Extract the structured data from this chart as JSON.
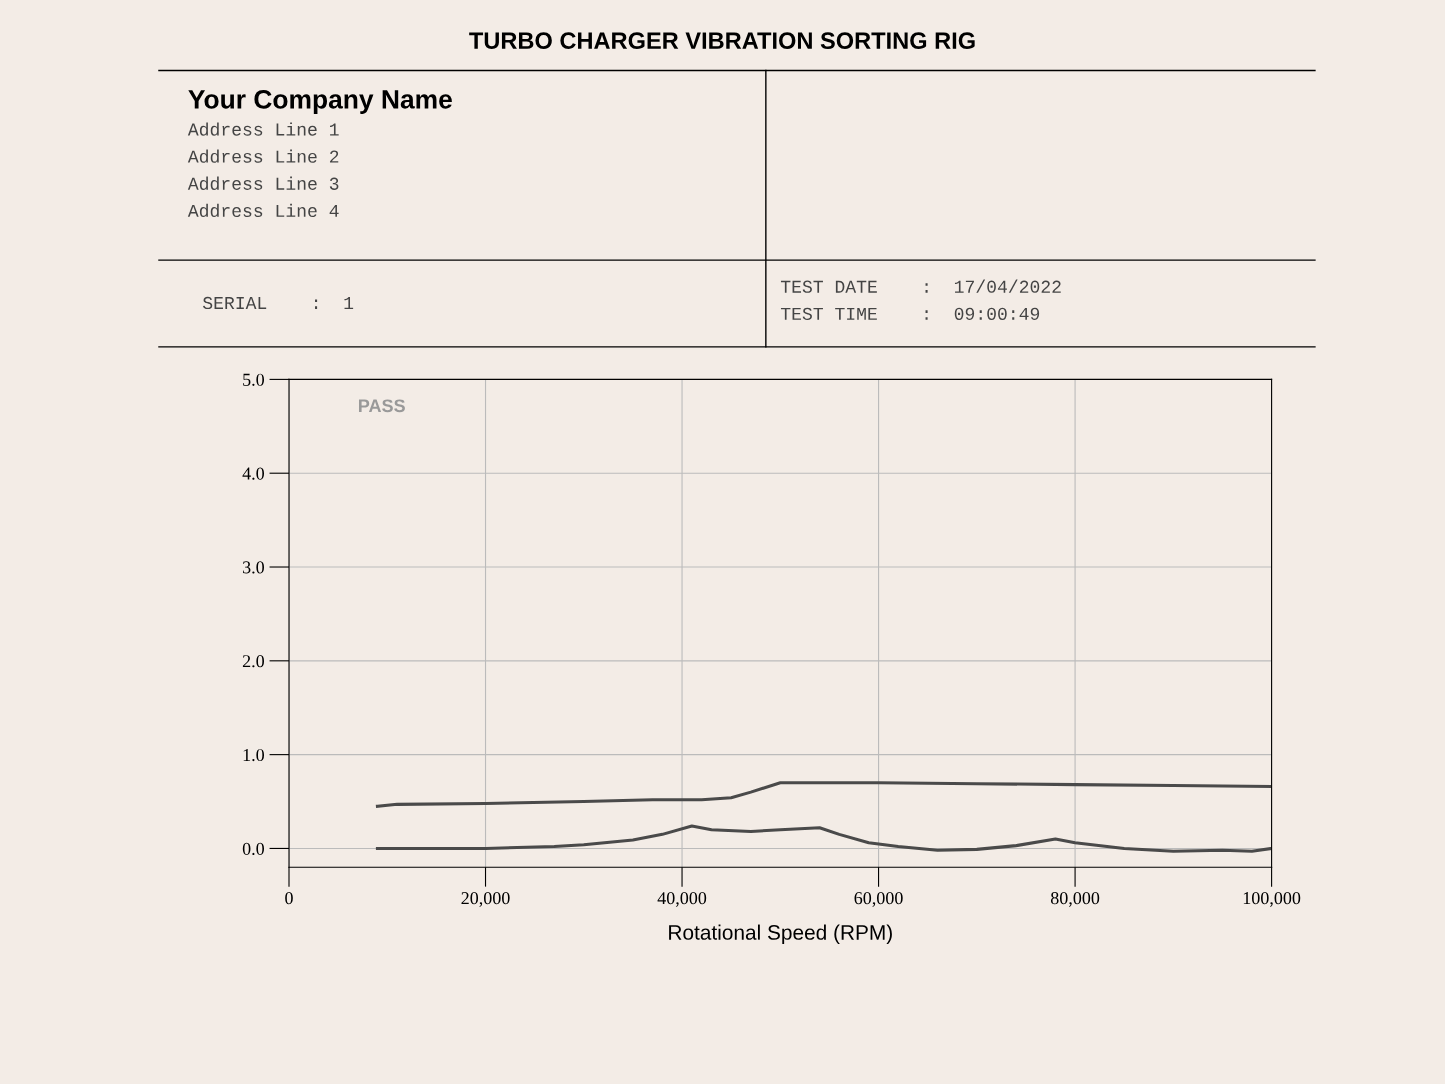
{
  "chart_data": {
    "type": "line",
    "title": "TURBO CHARGER VIBRATION SORTING RIG",
    "xlabel": "Rotational Speed (RPM)",
    "annotations": [
      "Your Company Name",
      "Address Line 1",
      "Address Line 2",
      "Address Line 3",
      "Address Line 4",
      "SERIAL    :  1",
      "TEST DATE    :  17/04/2022",
      "TEST TIME    :  09:00:49",
      "PASS"
    ],
    "series": [
      {
        "color": "#4a4a4a",
        "x": [
          9000,
          11000,
          20000,
          30000,
          37000,
          42000,
          45000,
          47000,
          50000,
          60000,
          70000,
          80000,
          90000,
          100000
        ],
        "values": [
          0.45,
          0.47,
          0.48,
          0.5,
          0.52,
          0.52,
          0.54,
          0.6,
          0.7,
          0.7,
          0.69,
          0.68,
          0.67,
          0.66
        ]
      },
      {
        "color": "#4a4a4a",
        "x": [
          9000,
          20000,
          27000,
          30000,
          35000,
          38000,
          41000,
          43000,
          47000,
          50000,
          54000,
          56000,
          59000,
          62000,
          66000,
          70000,
          74000,
          78000,
          80000,
          85000,
          90000,
          95000,
          98000,
          100000
        ],
        "values": [
          0.0,
          0.0,
          0.02,
          0.04,
          0.09,
          0.15,
          0.24,
          0.2,
          0.18,
          0.2,
          0.22,
          0.15,
          0.06,
          0.02,
          -0.02,
          -0.01,
          0.03,
          0.1,
          0.06,
          0.0,
          -0.03,
          -0.02,
          -0.03,
          0.0
        ]
      }
    ],
    "xlim": [
      0,
      100000
    ],
    "ylim": [
      -0.2,
      5.0
    ],
    "xticks": [
      0,
      {
        "value": 20000,
        "label": "20,000"
      },
      {
        "value": 40000,
        "label": "40,000"
      },
      {
        "value": 60000,
        "label": "60,000"
      },
      {
        "value": 80000,
        "label": "80,000"
      },
      {
        "value": 100000,
        "label": "100,000"
      }
    ],
    "yticks": [
      {
        "value": 0,
        "label": "0.0"
      },
      {
        "value": 1,
        "label": "1.0"
      },
      {
        "value": 2,
        "label": "2.0"
      },
      {
        "value": 3,
        "label": "3.0"
      },
      {
        "value": 4,
        "label": "4.0"
      },
      {
        "value": 5,
        "label": "5.0"
      }
    ],
    "grid": true
  }
}
